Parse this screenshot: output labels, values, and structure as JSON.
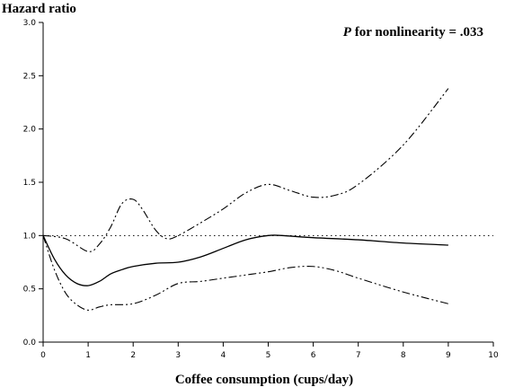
{
  "chart_data": {
    "type": "line",
    "ylabel": "Hazard  ratio",
    "xlabel": "Coffee consumption (cups/day)",
    "annotation": {
      "p_label": "P",
      "rest": " for nonlinearity = .033"
    },
    "xlim": [
      0,
      10
    ],
    "ylim": [
      0,
      3.0
    ],
    "x_ticks": [
      0,
      1,
      2,
      3,
      4,
      5,
      6,
      7,
      8,
      9,
      10
    ],
    "x_tick_labels": [
      "0",
      "1",
      "2",
      "3",
      "4",
      "5",
      "6",
      "7",
      "8",
      "9",
      "10"
    ],
    "y_ticks": [
      0,
      0.5,
      1.0,
      1.5,
      2.0,
      2.5,
      3.0
    ],
    "y_tick_labels": [
      "0.0",
      "0.5",
      "1.0",
      "1.5",
      "2.0",
      "2.5",
      "3.0"
    ],
    "reference_line": 1.0,
    "series": [
      {
        "style": "solid",
        "x": [
          0,
          0.25,
          0.5,
          0.75,
          1.0,
          1.25,
          1.5,
          1.75,
          2.0,
          2.5,
          3.0,
          3.5,
          4.0,
          4.5,
          5.0,
          5.3,
          6.0,
          7.0,
          8.0,
          9.0
        ],
        "y": [
          1.0,
          0.78,
          0.63,
          0.55,
          0.53,
          0.57,
          0.64,
          0.68,
          0.71,
          0.74,
          0.75,
          0.8,
          0.88,
          0.96,
          1.0,
          1.0,
          0.98,
          0.96,
          0.93,
          0.91
        ]
      },
      {
        "style": "dash-dot",
        "x": [
          0,
          0.5,
          1.0,
          1.25,
          1.5,
          1.75,
          2.0,
          2.2,
          2.5,
          2.75,
          3.0,
          3.5,
          4.0,
          4.5,
          5.0,
          5.5,
          6.0,
          6.5,
          7.0,
          8.0,
          9.0
        ],
        "y": [
          1.0,
          0.97,
          0.85,
          0.92,
          1.08,
          1.3,
          1.34,
          1.25,
          1.05,
          0.97,
          1.0,
          1.12,
          1.25,
          1.4,
          1.48,
          1.42,
          1.36,
          1.38,
          1.48,
          1.85,
          2.38
        ]
      },
      {
        "style": "dash-dot",
        "x": [
          0,
          0.25,
          0.5,
          0.75,
          1.0,
          1.25,
          1.5,
          2.0,
          2.5,
          3.0,
          3.5,
          4.0,
          4.5,
          5.0,
          5.5,
          6.0,
          6.5,
          7.0,
          8.0,
          9.0
        ],
        "y": [
          1.0,
          0.68,
          0.46,
          0.35,
          0.3,
          0.33,
          0.35,
          0.36,
          0.44,
          0.55,
          0.57,
          0.6,
          0.63,
          0.66,
          0.7,
          0.71,
          0.67,
          0.6,
          0.47,
          0.36
        ]
      }
    ]
  }
}
